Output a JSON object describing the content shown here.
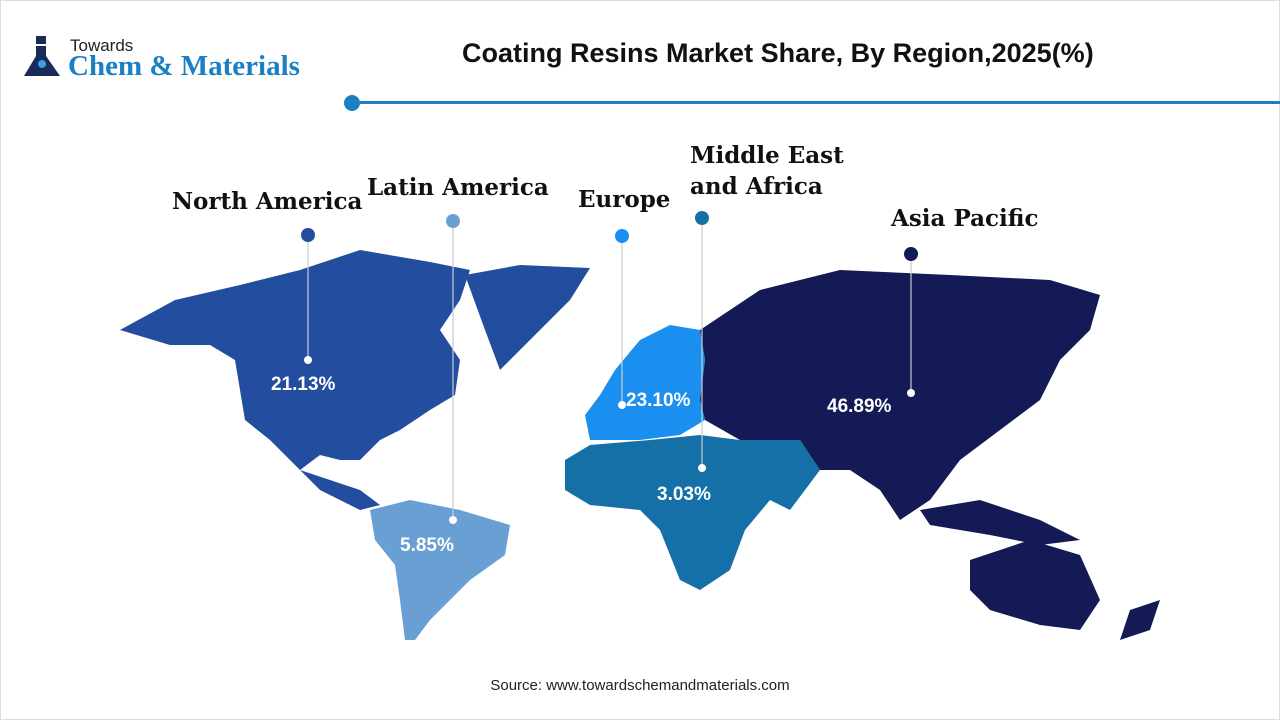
{
  "logo": {
    "line1": "Towards",
    "line2": "Chem & Materials",
    "icon": "flask-icon"
  },
  "title": "Coating Resins Market Share, By Region,2025(%)",
  "colors": {
    "accent": "#1a7fc4",
    "north_america": "#234d9e",
    "latin_america": "#6a9fd3",
    "europe": "#1a8ff0",
    "middle_east_africa": "#1670a8",
    "asia_pacific": "#141a55"
  },
  "regions": [
    {
      "name": "North America",
      "value": "21.13%"
    },
    {
      "name": "Latin America",
      "value": "5.85%"
    },
    {
      "name": "Europe",
      "value": "23.10%"
    },
    {
      "name": "Middle East\nand Africa",
      "value": "3.03%"
    },
    {
      "name": "Asia Pacific",
      "value": "46.89%"
    }
  ],
  "source": "Source: www.towardschemandmaterials.com"
}
